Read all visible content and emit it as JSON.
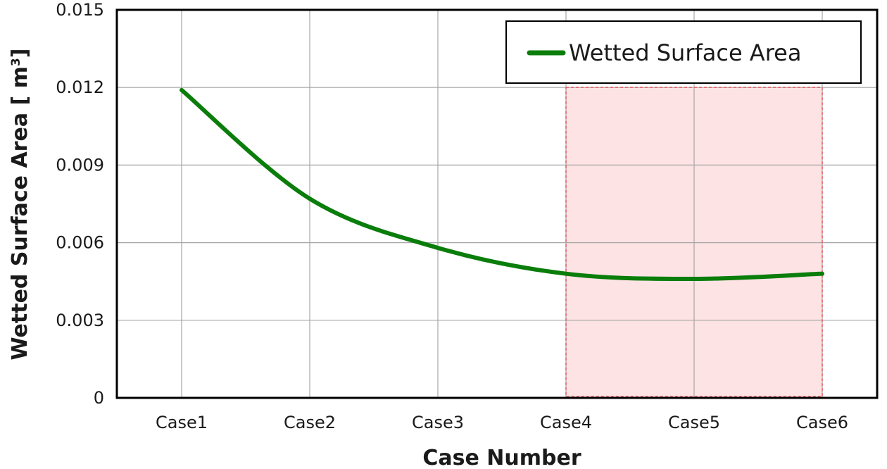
{
  "chart_data": {
    "type": "line",
    "categories": [
      "Case1",
      "Case2",
      "Case3",
      "Case4",
      "Case5",
      "Case6"
    ],
    "series": [
      {
        "name": "Wetted Surface Area",
        "color": "#0a7d0a",
        "values": [
          0.0119,
          0.0077,
          0.0058,
          0.0048,
          0.0046,
          0.0048
        ]
      }
    ],
    "xlabel": "Case Number",
    "ylabel": "Wetted Surface Area [ m",
    "ylabel_superscript": "3",
    "ylabel_close": "]",
    "ylim": [
      0,
      0.015
    ],
    "yticks": [
      "0",
      "0.003",
      "0.006",
      "0.009",
      "0.012",
      "0.015"
    ],
    "ytick_values": [
      0,
      0.003,
      0.006,
      0.009,
      0.012,
      0.015
    ],
    "grid": true,
    "legend_position": "top-right",
    "highlight": {
      "from_category": "Case4",
      "to_category": "Case6",
      "y_top": 0.012,
      "fill": "#fde3e4",
      "stroke": "#e8626a"
    }
  }
}
